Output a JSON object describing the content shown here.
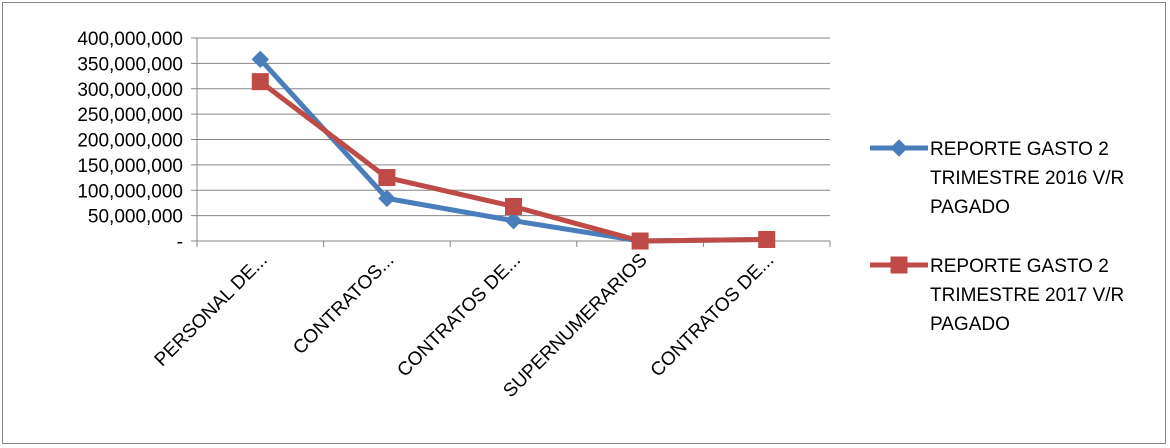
{
  "chart_data": {
    "type": "line",
    "title": "",
    "xlabel": "",
    "ylabel": "",
    "categories": [
      "PERSONAL DE...",
      "CONTRATOS...",
      "CONTRATOS DE...",
      "SUPERNUMERARIOS",
      "CONTRATOS DE..."
    ],
    "ylim": [
      0,
      400000000
    ],
    "y_ticks": [
      {
        "value": 0,
        "label": "-"
      },
      {
        "value": 50000000,
        "label": "50,000,000"
      },
      {
        "value": 100000000,
        "label": "100,000,000"
      },
      {
        "value": 150000000,
        "label": "150,000,000"
      },
      {
        "value": 200000000,
        "label": "200,000,000"
      },
      {
        "value": 250000000,
        "label": "250,000,000"
      },
      {
        "value": 300000000,
        "label": "300,000,000"
      },
      {
        "value": 350000000,
        "label": "350,000,000"
      },
      {
        "value": 400000000,
        "label": "400,000,000"
      }
    ],
    "grid": true,
    "legend_position": "right",
    "series": [
      {
        "name": "REPORTE GASTO 2 TRIMESTRE 2016 V/R PAGADO",
        "legend_lines": [
          "REPORTE GASTO 2",
          "TRIMESTRE 2016 V/R",
          "PAGADO"
        ],
        "color": "#4a7ebb",
        "marker": "diamond",
        "values": [
          358000000,
          84000000,
          40000000,
          0,
          3000000
        ]
      },
      {
        "name": "REPORTE GASTO 2 TRIMESTRE 2017 V/R PAGADO",
        "legend_lines": [
          "REPORTE GASTO 2",
          "TRIMESTRE 2017 V/R",
          "PAGADO"
        ],
        "color": "#be4b48",
        "marker": "square",
        "values": [
          314000000,
          125000000,
          68000000,
          0,
          3000000
        ]
      }
    ]
  }
}
